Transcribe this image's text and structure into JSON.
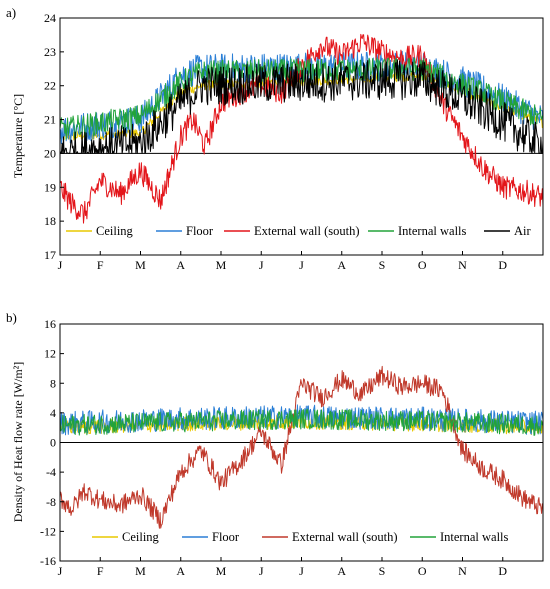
{
  "chart_data": [
    {
      "type": "line",
      "panel_label": "a)",
      "ylabel": "Temperature [°C]",
      "ylim": [
        17,
        24
      ],
      "yticks": [
        17,
        18,
        19,
        20,
        21,
        22,
        23,
        24
      ],
      "months": [
        "J",
        "F",
        "M",
        "A",
        "M",
        "J",
        "J",
        "A",
        "S",
        "O",
        "N",
        "D"
      ],
      "legend_placement": "bottom",
      "series": [
        {
          "name": "Ceiling",
          "color": "#e8c800",
          "x": [
            0,
            2,
            3,
            3.5,
            9,
            10.5,
            12
          ],
          "values": [
            20.5,
            20.6,
            21.8,
            22.0,
            22.3,
            21.6,
            20.9
          ]
        },
        {
          "name": "Floor",
          "color": "#2b7fd6",
          "x": [
            0,
            2,
            3,
            3.5,
            9,
            10.5,
            12
          ],
          "values": [
            20.7,
            21.0,
            22.3,
            22.5,
            22.6,
            21.9,
            21.0
          ]
        },
        {
          "name": "External wall (south)",
          "color": "#e3151a",
          "x": [
            0,
            0.3,
            0.6,
            1,
            1.5,
            2,
            2.5,
            3,
            3.3,
            3.6,
            4,
            4.5,
            5,
            5.5,
            6,
            6.5,
            7,
            7.5,
            8,
            8.5,
            9,
            9.5,
            10,
            10.5,
            11,
            11.5,
            12
          ],
          "values": [
            19.0,
            18.5,
            18.2,
            19.2,
            18.8,
            19.5,
            18.6,
            20.5,
            21.0,
            20.2,
            21.5,
            21.8,
            22.0,
            21.8,
            22.6,
            23.2,
            22.9,
            23.3,
            23.0,
            22.8,
            22.9,
            21.5,
            20.5,
            19.6,
            19.0,
            18.9,
            18.7
          ]
        },
        {
          "name": "Internal walls",
          "color": "#22a33a",
          "x": [
            0,
            2,
            3,
            3.5,
            9,
            10.5,
            12
          ],
          "values": [
            20.7,
            21.1,
            22.1,
            22.4,
            22.5,
            21.8,
            21.0
          ]
        },
        {
          "name": "Air",
          "color": "#000000",
          "x": [
            0,
            2,
            3,
            3.5,
            9,
            10.5,
            12
          ],
          "values": [
            20.0,
            20.3,
            21.5,
            22.0,
            22.2,
            21.3,
            20.2
          ]
        }
      ]
    },
    {
      "type": "line",
      "panel_label": "b)",
      "ylabel": "Density of Heat flow rate [W/m²]",
      "ylim": [
        -16,
        16
      ],
      "yticks": [
        -16,
        -12,
        -8,
        -4,
        0,
        4,
        8,
        12,
        16
      ],
      "months": [
        "J",
        "F",
        "M",
        "A",
        "M",
        "J",
        "J",
        "A",
        "S",
        "O",
        "N",
        "D"
      ],
      "legend_placement": "bottom",
      "series": [
        {
          "name": "Ceiling",
          "color": "#e8c800",
          "x": [
            0,
            3,
            6,
            9,
            12
          ],
          "values": [
            2.0,
            2.5,
            2.8,
            2.5,
            2.0
          ]
        },
        {
          "name": "Floor",
          "color": "#2b7fd6",
          "x": [
            0,
            3,
            6,
            9,
            12
          ],
          "values": [
            2.6,
            3.2,
            3.5,
            3.2,
            2.6
          ]
        },
        {
          "name": "External wall (south)",
          "color": "#c0392b",
          "x": [
            0,
            0.3,
            0.6,
            1,
            1.5,
            2,
            2.5,
            3,
            3.5,
            4,
            4.5,
            5,
            5.5,
            6,
            6.5,
            7,
            7.5,
            8,
            8.5,
            9,
            9.5,
            10,
            10.5,
            11,
            11.5,
            12
          ],
          "values": [
            -7.5,
            -9.0,
            -6.5,
            -7.8,
            -8.5,
            -7.0,
            -10.5,
            -4.0,
            -1.0,
            -5.5,
            -2.5,
            1.5,
            -3.0,
            8.0,
            6.0,
            8.5,
            6.5,
            9.0,
            7.5,
            8.0,
            7.0,
            -1.0,
            -3.5,
            -5.0,
            -7.5,
            -9.0
          ]
        },
        {
          "name": "Internal walls",
          "color": "#22a33a",
          "x": [
            0,
            3,
            6,
            9,
            12
          ],
          "values": [
            2.3,
            2.8,
            3.2,
            2.9,
            2.3
          ]
        }
      ]
    }
  ]
}
